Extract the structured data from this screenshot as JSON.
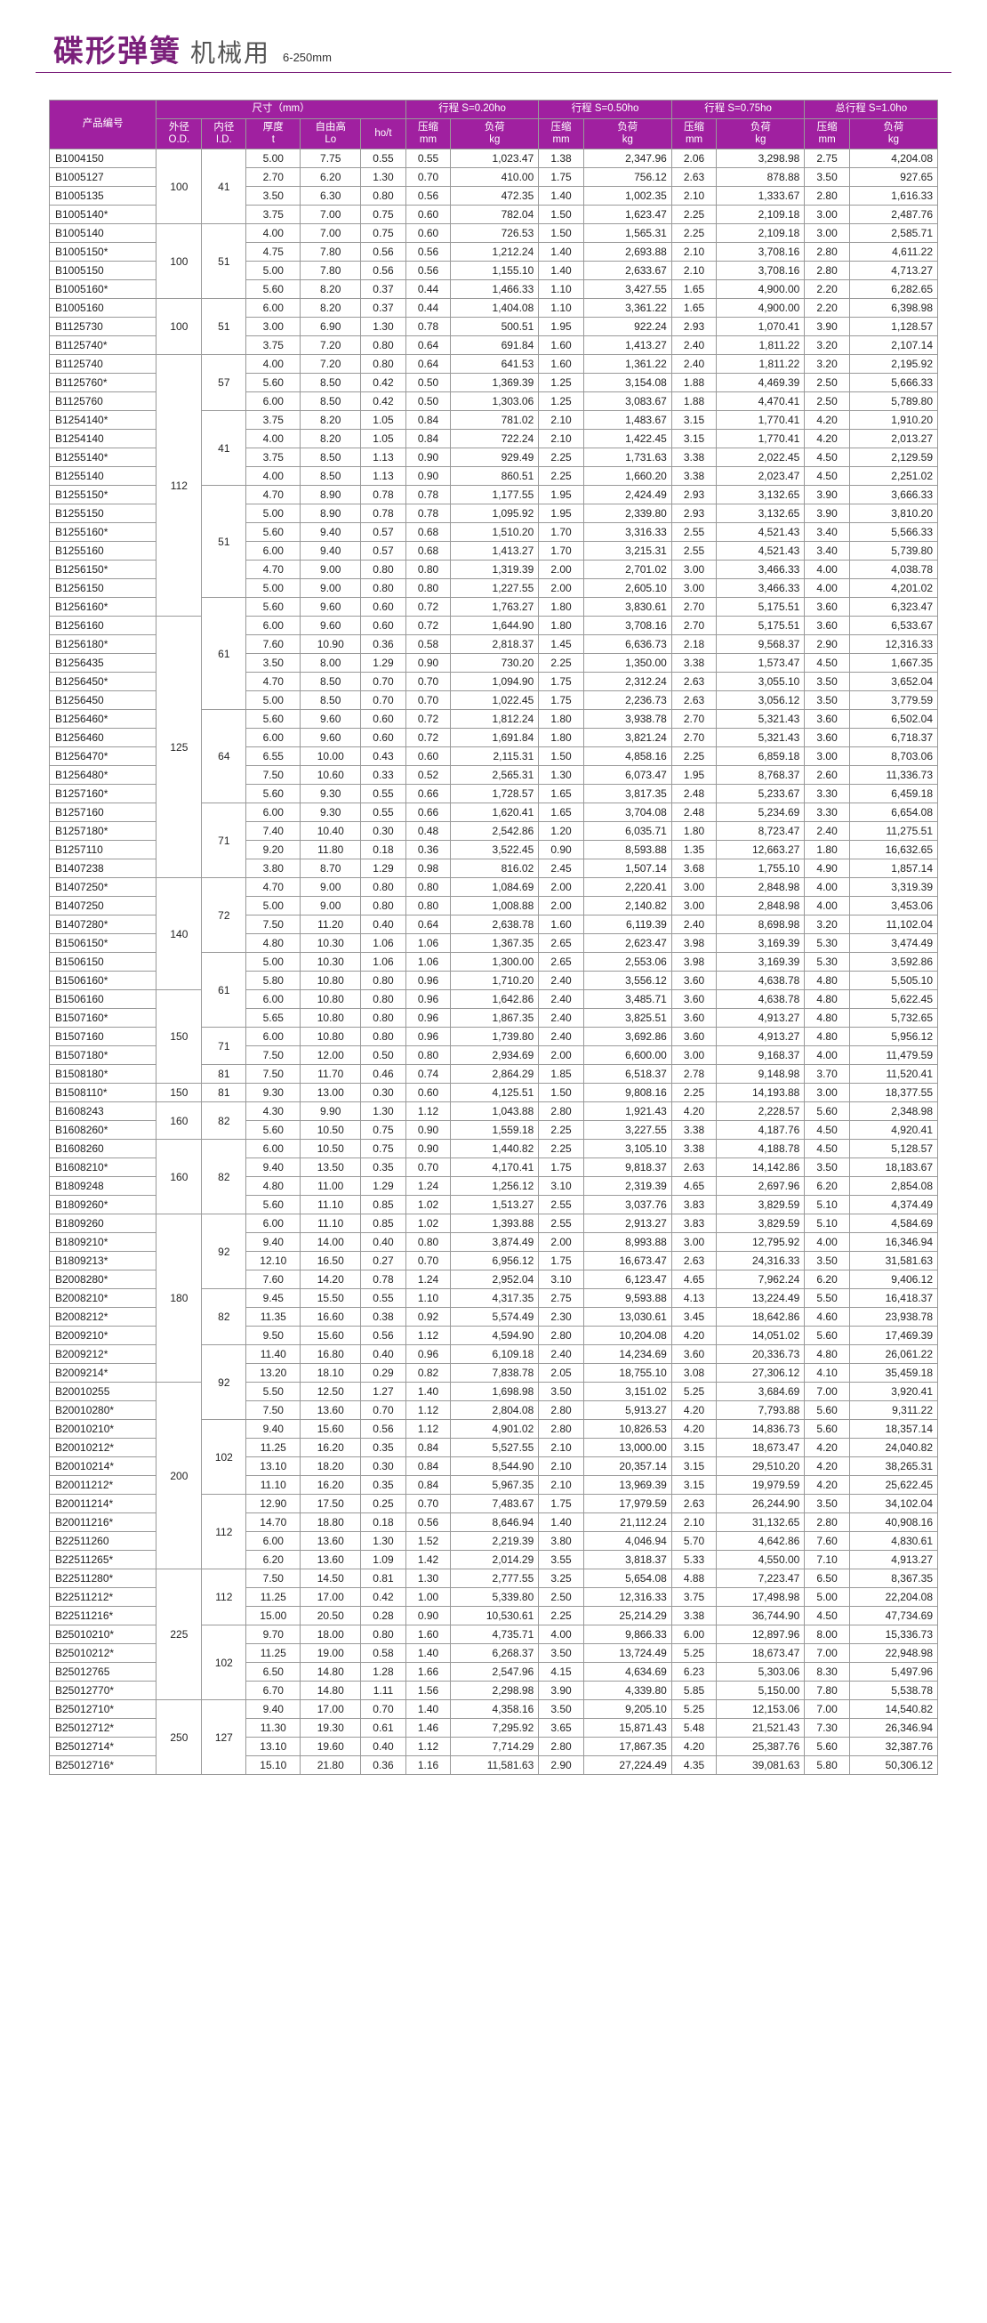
{
  "title": {
    "main": "碟形弹簧",
    "sub": "机械用",
    "note": "6-250mm"
  },
  "header_colors": {
    "bg": "#a020a0",
    "fg": "#ffffff"
  },
  "header": {
    "group_dim": "尺寸（mm）",
    "group_s020": "行程 S=0.20ho",
    "group_s050": "行程 S=0.50ho",
    "group_s075": "行程 S=0.75ho",
    "group_s100": "总行程 S=1.0ho",
    "col_code": "产品编号",
    "col_od": "外径\nO.D.",
    "col_id": "内径\nI.D.",
    "col_t": "厚度\nt",
    "col_lo": "自由高\nLo",
    "col_hot": "ho/t",
    "col_comp": "压缩\nmm",
    "col_load": "负荷\nkg"
  },
  "rows": [
    [
      "B1004150",
      "100",
      "41",
      "5.00",
      "7.75",
      "0.55",
      "0.55",
      "1,023.47",
      "1.38",
      "2,347.96",
      "2.06",
      "3,298.98",
      "2.75",
      "4,204.08"
    ],
    [
      "B1005127",
      "",
      "",
      "2.70",
      "6.20",
      "1.30",
      "0.70",
      "410.00",
      "1.75",
      "756.12",
      "2.63",
      "878.88",
      "3.50",
      "927.65"
    ],
    [
      "B1005135",
      "",
      "",
      "3.50",
      "6.30",
      "0.80",
      "0.56",
      "472.35",
      "1.40",
      "1,002.35",
      "2.10",
      "1,333.67",
      "2.80",
      "1,616.33"
    ],
    [
      "B1005140*",
      "",
      "",
      "3.75",
      "7.00",
      "0.75",
      "0.60",
      "782.04",
      "1.50",
      "1,623.47",
      "2.25",
      "2,109.18",
      "3.00",
      "2,487.76"
    ],
    [
      "B1005140",
      "100",
      "51",
      "4.00",
      "7.00",
      "0.75",
      "0.60",
      "726.53",
      "1.50",
      "1,565.31",
      "2.25",
      "2,109.18",
      "3.00",
      "2,585.71"
    ],
    [
      "B1005150*",
      "",
      "",
      "4.75",
      "7.80",
      "0.56",
      "0.56",
      "1,212.24",
      "1.40",
      "2,693.88",
      "2.10",
      "3,708.16",
      "2.80",
      "4,611.22"
    ],
    [
      "B1005150",
      "",
      "",
      "5.00",
      "7.80",
      "0.56",
      "0.56",
      "1,155.10",
      "1.40",
      "2,633.67",
      "2.10",
      "3,708.16",
      "2.80",
      "4,713.27"
    ],
    [
      "B1005160*",
      "",
      "",
      "5.60",
      "8.20",
      "0.37",
      "0.44",
      "1,466.33",
      "1.10",
      "3,427.55",
      "1.65",
      "4,900.00",
      "2.20",
      "6,282.65"
    ],
    [
      "B1005160",
      "100",
      "51",
      "6.00",
      "8.20",
      "0.37",
      "0.44",
      "1,404.08",
      "1.10",
      "3,361.22",
      "1.65",
      "4,900.00",
      "2.20",
      "6,398.98"
    ],
    [
      "B1125730",
      "",
      "",
      "3.00",
      "6.90",
      "1.30",
      "0.78",
      "500.51",
      "1.95",
      "922.24",
      "2.93",
      "1,070.41",
      "3.90",
      "1,128.57"
    ],
    [
      "B1125740*",
      "",
      "",
      "3.75",
      "7.20",
      "0.80",
      "0.64",
      "691.84",
      "1.60",
      "1,413.27",
      "2.40",
      "1,811.22",
      "3.20",
      "2,107.14"
    ],
    [
      "B1125740",
      "112",
      "57",
      "4.00",
      "7.20",
      "0.80",
      "0.64",
      "641.53",
      "1.60",
      "1,361.22",
      "2.40",
      "1,811.22",
      "3.20",
      "2,195.92"
    ],
    [
      "B1125760*",
      "",
      "",
      "5.60",
      "8.50",
      "0.42",
      "0.50",
      "1,369.39",
      "1.25",
      "3,154.08",
      "1.88",
      "4,469.39",
      "2.50",
      "5,666.33"
    ],
    [
      "B1125760",
      "",
      "",
      "6.00",
      "8.50",
      "0.42",
      "0.50",
      "1,303.06",
      "1.25",
      "3,083.67",
      "1.88",
      "4,470.41",
      "2.50",
      "5,789.80"
    ],
    [
      "B1254140*",
      "",
      "41",
      "3.75",
      "8.20",
      "1.05",
      "0.84",
      "781.02",
      "2.10",
      "1,483.67",
      "3.15",
      "1,770.41",
      "4.20",
      "1,910.20"
    ],
    [
      "B1254140",
      "",
      "",
      "4.00",
      "8.20",
      "1.05",
      "0.84",
      "722.24",
      "2.10",
      "1,422.45",
      "3.15",
      "1,770.41",
      "4.20",
      "2,013.27"
    ],
    [
      "B1255140*",
      "",
      "",
      "3.75",
      "8.50",
      "1.13",
      "0.90",
      "929.49",
      "2.25",
      "1,731.63",
      "3.38",
      "2,022.45",
      "4.50",
      "2,129.59"
    ],
    [
      "B1255140",
      "",
      "",
      "4.00",
      "8.50",
      "1.13",
      "0.90",
      "860.51",
      "2.25",
      "1,660.20",
      "3.38",
      "2,023.47",
      "4.50",
      "2,251.02"
    ],
    [
      "B1255150*",
      "",
      "51",
      "4.70",
      "8.90",
      "0.78",
      "0.78",
      "1,177.55",
      "1.95",
      "2,424.49",
      "2.93",
      "3,132.65",
      "3.90",
      "3,666.33"
    ],
    [
      "B1255150",
      "",
      "",
      "5.00",
      "8.90",
      "0.78",
      "0.78",
      "1,095.92",
      "1.95",
      "2,339.80",
      "2.93",
      "3,132.65",
      "3.90",
      "3,810.20"
    ],
    [
      "B1255160*",
      "",
      "",
      "5.60",
      "9.40",
      "0.57",
      "0.68",
      "1,510.20",
      "1.70",
      "3,316.33",
      "2.55",
      "4,521.43",
      "3.40",
      "5,566.33"
    ],
    [
      "B1255160",
      "",
      "",
      "6.00",
      "9.40",
      "0.57",
      "0.68",
      "1,413.27",
      "1.70",
      "3,215.31",
      "2.55",
      "4,521.43",
      "3.40",
      "5,739.80"
    ],
    [
      "B1256150*",
      "",
      "",
      "4.70",
      "9.00",
      "0.80",
      "0.80",
      "1,319.39",
      "2.00",
      "2,701.02",
      "3.00",
      "3,466.33",
      "4.00",
      "4,038.78"
    ],
    [
      "B1256150",
      "",
      "",
      "5.00",
      "9.00",
      "0.80",
      "0.80",
      "1,227.55",
      "2.00",
      "2,605.10",
      "3.00",
      "3,466.33",
      "4.00",
      "4,201.02"
    ],
    [
      "B1256160*",
      "",
      "61",
      "5.60",
      "9.60",
      "0.60",
      "0.72",
      "1,763.27",
      "1.80",
      "3,830.61",
      "2.70",
      "5,175.51",
      "3.60",
      "6,323.47"
    ],
    [
      "B1256160",
      "125",
      "",
      "6.00",
      "9.60",
      "0.60",
      "0.72",
      "1,644.90",
      "1.80",
      "3,708.16",
      "2.70",
      "5,175.51",
      "3.60",
      "6,533.67"
    ],
    [
      "B1256180*",
      "",
      "",
      "7.60",
      "10.90",
      "0.36",
      "0.58",
      "2,818.37",
      "1.45",
      "6,636.73",
      "2.18",
      "9,568.37",
      "2.90",
      "12,316.33"
    ],
    [
      "B1256435",
      "",
      "",
      "3.50",
      "8.00",
      "1.29",
      "0.90",
      "730.20",
      "2.25",
      "1,350.00",
      "3.38",
      "1,573.47",
      "4.50",
      "1,667.35"
    ],
    [
      "B1256450*",
      "",
      "",
      "4.70",
      "8.50",
      "0.70",
      "0.70",
      "1,094.90",
      "1.75",
      "2,312.24",
      "2.63",
      "3,055.10",
      "3.50",
      "3,652.04"
    ],
    [
      "B1256450",
      "",
      "",
      "5.00",
      "8.50",
      "0.70",
      "0.70",
      "1,022.45",
      "1.75",
      "2,236.73",
      "2.63",
      "3,056.12",
      "3.50",
      "3,779.59"
    ],
    [
      "B1256460*",
      "",
      "64",
      "5.60",
      "9.60",
      "0.60",
      "0.72",
      "1,812.24",
      "1.80",
      "3,938.78",
      "2.70",
      "5,321.43",
      "3.60",
      "6,502.04"
    ],
    [
      "B1256460",
      "",
      "",
      "6.00",
      "9.60",
      "0.60",
      "0.72",
      "1,691.84",
      "1.80",
      "3,821.24",
      "2.70",
      "5,321.43",
      "3.60",
      "6,718.37"
    ],
    [
      "B1256470*",
      "",
      "",
      "6.55",
      "10.00",
      "0.43",
      "0.60",
      "2,115.31",
      "1.50",
      "4,858.16",
      "2.25",
      "6,859.18",
      "3.00",
      "8,703.06"
    ],
    [
      "B1256480*",
      "",
      "",
      "7.50",
      "10.60",
      "0.33",
      "0.52",
      "2,565.31",
      "1.30",
      "6,073.47",
      "1.95",
      "8,768.37",
      "2.60",
      "11,336.73"
    ],
    [
      "B1257160*",
      "",
      "",
      "5.60",
      "9.30",
      "0.55",
      "0.66",
      "1,728.57",
      "1.65",
      "3,817.35",
      "2.48",
      "5,233.67",
      "3.30",
      "6,459.18"
    ],
    [
      "B1257160",
      "",
      "71",
      "6.00",
      "9.30",
      "0.55",
      "0.66",
      "1,620.41",
      "1.65",
      "3,704.08",
      "2.48",
      "5,234.69",
      "3.30",
      "6,654.08"
    ],
    [
      "B1257180*",
      "",
      "",
      "7.40",
      "10.40",
      "0.30",
      "0.48",
      "2,542.86",
      "1.20",
      "6,035.71",
      "1.80",
      "8,723.47",
      "2.40",
      "11,275.51"
    ],
    [
      "B1257110",
      "",
      "",
      "9.20",
      "11.80",
      "0.18",
      "0.36",
      "3,522.45",
      "0.90",
      "8,593.88",
      "1.35",
      "12,663.27",
      "1.80",
      "16,632.65"
    ],
    [
      "B1407238",
      "",
      "",
      "3.80",
      "8.70",
      "1.29",
      "0.98",
      "816.02",
      "2.45",
      "1,507.14",
      "3.68",
      "1,755.10",
      "4.90",
      "1,857.14"
    ],
    [
      "B1407250*",
      "140",
      "72",
      "4.70",
      "9.00",
      "0.80",
      "0.80",
      "1,084.69",
      "2.00",
      "2,220.41",
      "3.00",
      "2,848.98",
      "4.00",
      "3,319.39"
    ],
    [
      "B1407250",
      "",
      "",
      "5.00",
      "9.00",
      "0.80",
      "0.80",
      "1,008.88",
      "2.00",
      "2,140.82",
      "3.00",
      "2,848.98",
      "4.00",
      "3,453.06"
    ],
    [
      "B1407280*",
      "",
      "",
      "7.50",
      "11.20",
      "0.40",
      "0.64",
      "2,638.78",
      "1.60",
      "6,119.39",
      "2.40",
      "8,698.98",
      "3.20",
      "11,102.04"
    ],
    [
      "B1506150*",
      "",
      "",
      "4.80",
      "10.30",
      "1.06",
      "1.06",
      "1,367.35",
      "2.65",
      "2,623.47",
      "3.98",
      "3,169.39",
      "5.30",
      "3,474.49"
    ],
    [
      "B1506150",
      "",
      "61",
      "5.00",
      "10.30",
      "1.06",
      "1.06",
      "1,300.00",
      "2.65",
      "2,553.06",
      "3.98",
      "3,169.39",
      "5.30",
      "3,592.86"
    ],
    [
      "B1506160*",
      "",
      "",
      "5.80",
      "10.80",
      "0.80",
      "0.96",
      "1,710.20",
      "2.40",
      "3,556.12",
      "3.60",
      "4,638.78",
      "4.80",
      "5,505.10"
    ],
    [
      "B1506160",
      "150",
      "",
      "6.00",
      "10.80",
      "0.80",
      "0.96",
      "1,642.86",
      "2.40",
      "3,485.71",
      "3.60",
      "4,638.78",
      "4.80",
      "5,622.45"
    ],
    [
      "B1507160*",
      "",
      "",
      "5.65",
      "10.80",
      "0.80",
      "0.96",
      "1,867.35",
      "2.40",
      "3,825.51",
      "3.60",
      "4,913.27",
      "4.80",
      "5,732.65"
    ],
    [
      "B1507160",
      "",
      "71",
      "6.00",
      "10.80",
      "0.80",
      "0.96",
      "1,739.80",
      "2.40",
      "3,692.86",
      "3.60",
      "4,913.27",
      "4.80",
      "5,956.12"
    ],
    [
      "B1507180*",
      "",
      "",
      "7.50",
      "12.00",
      "0.50",
      "0.80",
      "2,934.69",
      "2.00",
      "6,600.00",
      "3.00",
      "9,168.37",
      "4.00",
      "11,479.59"
    ],
    [
      "B1508180*",
      "",
      "81",
      "7.50",
      "11.70",
      "0.46",
      "0.74",
      "2,864.29",
      "1.85",
      "6,518.37",
      "2.78",
      "9,148.98",
      "3.70",
      "11,520.41"
    ],
    [
      "B1508110*",
      "150",
      "81",
      "9.30",
      "13.00",
      "0.30",
      "0.60",
      "4,125.51",
      "1.50",
      "9,808.16",
      "2.25",
      "14,193.88",
      "3.00",
      "18,377.55"
    ],
    [
      "B1608243",
      "160",
      "82",
      "4.30",
      "9.90",
      "1.30",
      "1.12",
      "1,043.88",
      "2.80",
      "1,921.43",
      "4.20",
      "2,228.57",
      "5.60",
      "2,348.98"
    ],
    [
      "B1608260*",
      "",
      "",
      "5.60",
      "10.50",
      "0.75",
      "0.90",
      "1,559.18",
      "2.25",
      "3,227.55",
      "3.38",
      "4,187.76",
      "4.50",
      "4,920.41"
    ],
    [
      "B1608260",
      "160",
      "82",
      "6.00",
      "10.50",
      "0.75",
      "0.90",
      "1,440.82",
      "2.25",
      "3,105.10",
      "3.38",
      "4,188.78",
      "4.50",
      "5,128.57"
    ],
    [
      "B1608210*",
      "",
      "",
      "9.40",
      "13.50",
      "0.35",
      "0.70",
      "4,170.41",
      "1.75",
      "9,818.37",
      "2.63",
      "14,142.86",
      "3.50",
      "18,183.67"
    ],
    [
      "B1809248",
      "",
      "",
      "4.80",
      "11.00",
      "1.29",
      "1.24",
      "1,256.12",
      "3.10",
      "2,319.39",
      "4.65",
      "2,697.96",
      "6.20",
      "2,854.08"
    ],
    [
      "B1809260*",
      "",
      "",
      "5.60",
      "11.10",
      "0.85",
      "1.02",
      "1,513.27",
      "2.55",
      "3,037.76",
      "3.83",
      "3,829.59",
      "5.10",
      "4,374.49"
    ],
    [
      "B1809260",
      "180",
      "92",
      "6.00",
      "11.10",
      "0.85",
      "1.02",
      "1,393.88",
      "2.55",
      "2,913.27",
      "3.83",
      "3,829.59",
      "5.10",
      "4,584.69"
    ],
    [
      "B1809210*",
      "",
      "",
      "9.40",
      "14.00",
      "0.40",
      "0.80",
      "3,874.49",
      "2.00",
      "8,993.88",
      "3.00",
      "12,795.92",
      "4.00",
      "16,346.94"
    ],
    [
      "B1809213*",
      "",
      "",
      "12.10",
      "16.50",
      "0.27",
      "0.70",
      "6,956.12",
      "1.75",
      "16,673.47",
      "2.63",
      "24,316.33",
      "3.50",
      "31,581.63"
    ],
    [
      "B2008280*",
      "",
      "",
      "7.60",
      "14.20",
      "0.78",
      "1.24",
      "2,952.04",
      "3.10",
      "6,123.47",
      "4.65",
      "7,962.24",
      "6.20",
      "9,406.12"
    ],
    [
      "B2008210*",
      "",
      "82",
      "9.45",
      "15.50",
      "0.55",
      "1.10",
      "4,317.35",
      "2.75",
      "9,593.88",
      "4.13",
      "13,224.49",
      "5.50",
      "16,418.37"
    ],
    [
      "B2008212*",
      "",
      "",
      "11.35",
      "16.60",
      "0.38",
      "0.92",
      "5,574.49",
      "2.30",
      "13,030.61",
      "3.45",
      "18,642.86",
      "4.60",
      "23,938.78"
    ],
    [
      "B2009210*",
      "",
      "",
      "9.50",
      "15.60",
      "0.56",
      "1.12",
      "4,594.90",
      "2.80",
      "10,204.08",
      "4.20",
      "14,051.02",
      "5.60",
      "17,469.39"
    ],
    [
      "B2009212*",
      "",
      "92",
      "11.40",
      "16.80",
      "0.40",
      "0.96",
      "6,109.18",
      "2.40",
      "14,234.69",
      "3.60",
      "20,336.73",
      "4.80",
      "26,061.22"
    ],
    [
      "B2009214*",
      "",
      "",
      "13.20",
      "18.10",
      "0.29",
      "0.82",
      "7,838.78",
      "2.05",
      "18,755.10",
      "3.08",
      "27,306.12",
      "4.10",
      "35,459.18"
    ],
    [
      "B20010255",
      "200",
      "",
      "5.50",
      "12.50",
      "1.27",
      "1.40",
      "1,698.98",
      "3.50",
      "3,151.02",
      "5.25",
      "3,684.69",
      "7.00",
      "3,920.41"
    ],
    [
      "B20010280*",
      "",
      "",
      "7.50",
      "13.60",
      "0.70",
      "1.12",
      "2,804.08",
      "2.80",
      "5,913.27",
      "4.20",
      "7,793.88",
      "5.60",
      "9,311.22"
    ],
    [
      "B20010210*",
      "",
      "102",
      "9.40",
      "15.60",
      "0.56",
      "1.12",
      "4,901.02",
      "2.80",
      "10,826.53",
      "4.20",
      "14,836.73",
      "5.60",
      "18,357.14"
    ],
    [
      "B20010212*",
      "",
      "",
      "11.25",
      "16.20",
      "0.35",
      "0.84",
      "5,527.55",
      "2.10",
      "13,000.00",
      "3.15",
      "18,673.47",
      "4.20",
      "24,040.82"
    ],
    [
      "B20010214*",
      "",
      "",
      "13.10",
      "18.20",
      "0.30",
      "0.84",
      "8,544.90",
      "2.10",
      "20,357.14",
      "3.15",
      "29,510.20",
      "4.20",
      "38,265.31"
    ],
    [
      "B20011212*",
      "",
      "",
      "11.10",
      "16.20",
      "0.35",
      "0.84",
      "5,967.35",
      "2.10",
      "13,969.39",
      "3.15",
      "19,979.59",
      "4.20",
      "25,622.45"
    ],
    [
      "B20011214*",
      "",
      "112",
      "12.90",
      "17.50",
      "0.25",
      "0.70",
      "7,483.67",
      "1.75",
      "17,979.59",
      "2.63",
      "26,244.90",
      "3.50",
      "34,102.04"
    ],
    [
      "B20011216*",
      "",
      "",
      "14.70",
      "18.80",
      "0.18",
      "0.56",
      "8,646.94",
      "1.40",
      "21,112.24",
      "2.10",
      "31,132.65",
      "2.80",
      "40,908.16"
    ],
    [
      "B22511260",
      "",
      "",
      "6.00",
      "13.60",
      "1.30",
      "1.52",
      "2,219.39",
      "3.80",
      "4,046.94",
      "5.70",
      "4,642.86",
      "7.60",
      "4,830.61"
    ],
    [
      "B22511265*",
      "",
      "",
      "6.20",
      "13.60",
      "1.09",
      "1.42",
      "2,014.29",
      "3.55",
      "3,818.37",
      "5.33",
      "4,550.00",
      "7.10",
      "4,913.27"
    ],
    [
      "B22511280*",
      "225",
      "112",
      "7.50",
      "14.50",
      "0.81",
      "1.30",
      "2,777.55",
      "3.25",
      "5,654.08",
      "4.88",
      "7,223.47",
      "6.50",
      "8,367.35"
    ],
    [
      "B22511212*",
      "",
      "",
      "11.25",
      "17.00",
      "0.42",
      "1.00",
      "5,339.80",
      "2.50",
      "12,316.33",
      "3.75",
      "17,498.98",
      "5.00",
      "22,204.08"
    ],
    [
      "B22511216*",
      "",
      "",
      "15.00",
      "20.50",
      "0.28",
      "0.90",
      "10,530.61",
      "2.25",
      "25,214.29",
      "3.38",
      "36,744.90",
      "4.50",
      "47,734.69"
    ],
    [
      "B25010210*",
      "",
      "102",
      "9.70",
      "18.00",
      "0.80",
      "1.60",
      "4,735.71",
      "4.00",
      "9,866.33",
      "6.00",
      "12,897.96",
      "8.00",
      "15,336.73"
    ],
    [
      "B25010212*",
      "",
      "",
      "11.25",
      "19.00",
      "0.58",
      "1.40",
      "6,268.37",
      "3.50",
      "13,724.49",
      "5.25",
      "18,673.47",
      "7.00",
      "22,948.98"
    ],
    [
      "B25012765",
      "",
      "",
      "6.50",
      "14.80",
      "1.28",
      "1.66",
      "2,547.96",
      "4.15",
      "4,634.69",
      "6.23",
      "5,303.06",
      "8.30",
      "5,497.96"
    ],
    [
      "B25012770*",
      "",
      "",
      "6.70",
      "14.80",
      "1.11",
      "1.56",
      "2,298.98",
      "3.90",
      "4,339.80",
      "5.85",
      "5,150.00",
      "7.80",
      "5,538.78"
    ],
    [
      "B25012710*",
      "250",
      "127",
      "9.40",
      "17.00",
      "0.70",
      "1.40",
      "4,358.16",
      "3.50",
      "9,205.10",
      "5.25",
      "12,153.06",
      "7.00",
      "14,540.82"
    ],
    [
      "B25012712*",
      "",
      "",
      "11.30",
      "19.30",
      "0.61",
      "1.46",
      "7,295.92",
      "3.65",
      "15,871.43",
      "5.48",
      "21,521.43",
      "7.30",
      "26,346.94"
    ],
    [
      "B25012714*",
      "",
      "",
      "13.10",
      "19.60",
      "0.40",
      "1.12",
      "7,714.29",
      "2.80",
      "17,867.35",
      "4.20",
      "25,387.76",
      "5.60",
      "32,387.76"
    ],
    [
      "B25012716*",
      "",
      "",
      "15.10",
      "21.80",
      "0.36",
      "1.16",
      "11,581.63",
      "2.90",
      "27,224.49",
      "4.35",
      "39,081.63",
      "5.80",
      "50,306.12"
    ]
  ]
}
